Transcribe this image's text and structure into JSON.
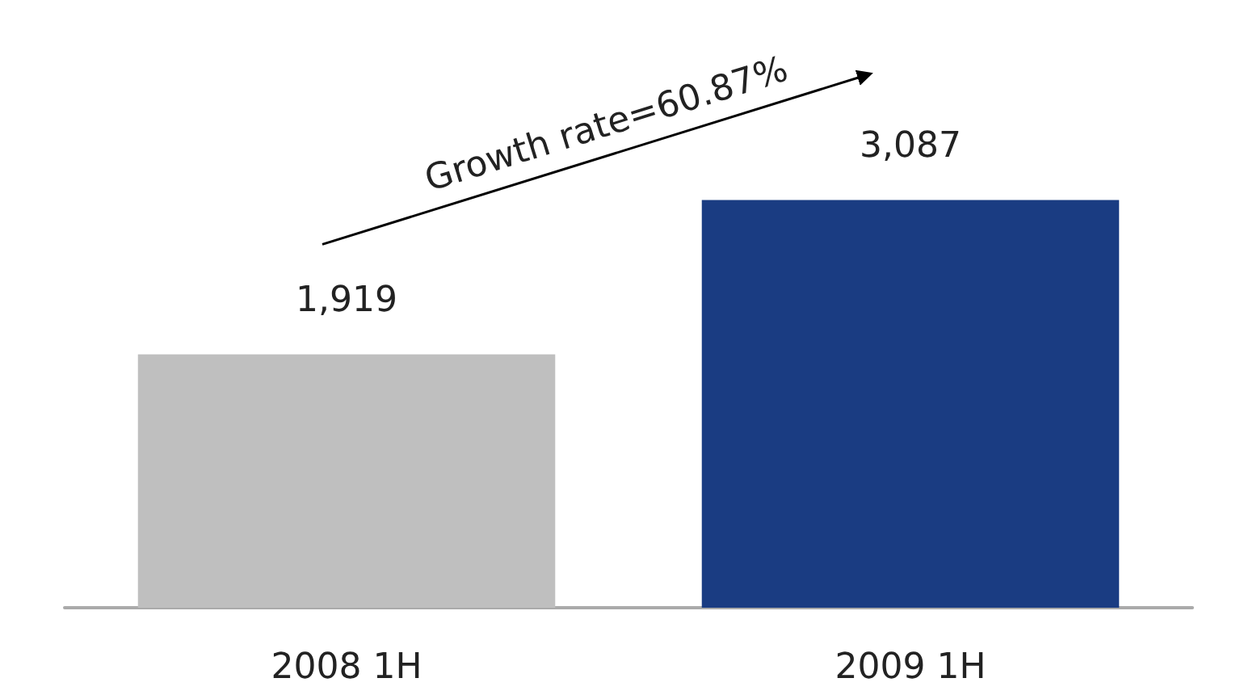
{
  "chart_data": {
    "type": "bar",
    "categories": [
      "2008 1H",
      "2009 1H"
    ],
    "values": [
      1919,
      3087
    ],
    "value_labels": [
      "1,919",
      "3,087"
    ],
    "colors": [
      "#bfbfbf",
      "#1a3c82"
    ],
    "annotations": [
      "Growth rate=60.87%"
    ]
  }
}
